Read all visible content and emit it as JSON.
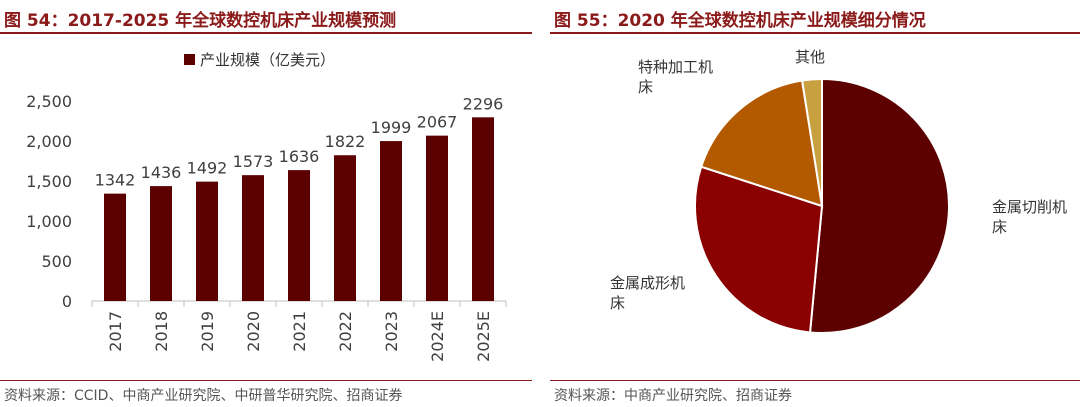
{
  "left": {
    "figure_title": "图 54：2017-2025 年全球数控机床产业规模预测",
    "source": "资料来源：CCID、中商产业研究院、中研普华研究院、招商证券"
  },
  "right": {
    "figure_title": "图 55：2020 年全球数控机床产业规模细分情况",
    "source": "资料来源：中商产业研究院、招商证券"
  },
  "colors": {
    "title": "#8B1A1A",
    "bar": "#5C0000",
    "slices": [
      "#5C0000",
      "#8B0000",
      "#B35900",
      "#C8A040"
    ]
  },
  "chart_data": [
    {
      "type": "bar",
      "categories": [
        "2017",
        "2018",
        "2019",
        "2020",
        "2021",
        "2022",
        "2023",
        "2024E",
        "2025E"
      ],
      "series": [
        {
          "name": "产业规模（亿美元）",
          "values": [
            1342,
            1436,
            1492,
            1573,
            1636,
            1822,
            1999,
            2067,
            2296
          ]
        }
      ],
      "ylim": [
        0,
        2500
      ],
      "yticks": [
        0,
        500,
        1000,
        1500,
        2000,
        2500
      ],
      "ytick_labels": [
        "0",
        "500",
        "1,000",
        "1,500",
        "2,000",
        "2,500"
      ],
      "grid": false,
      "legend_position": "top-center"
    },
    {
      "type": "pie",
      "labels": [
        "金属切削机床",
        "金属成形机床",
        "特种加工机床",
        "其他"
      ],
      "values": [
        51.5,
        28.5,
        17.5,
        2.5
      ]
    }
  ]
}
